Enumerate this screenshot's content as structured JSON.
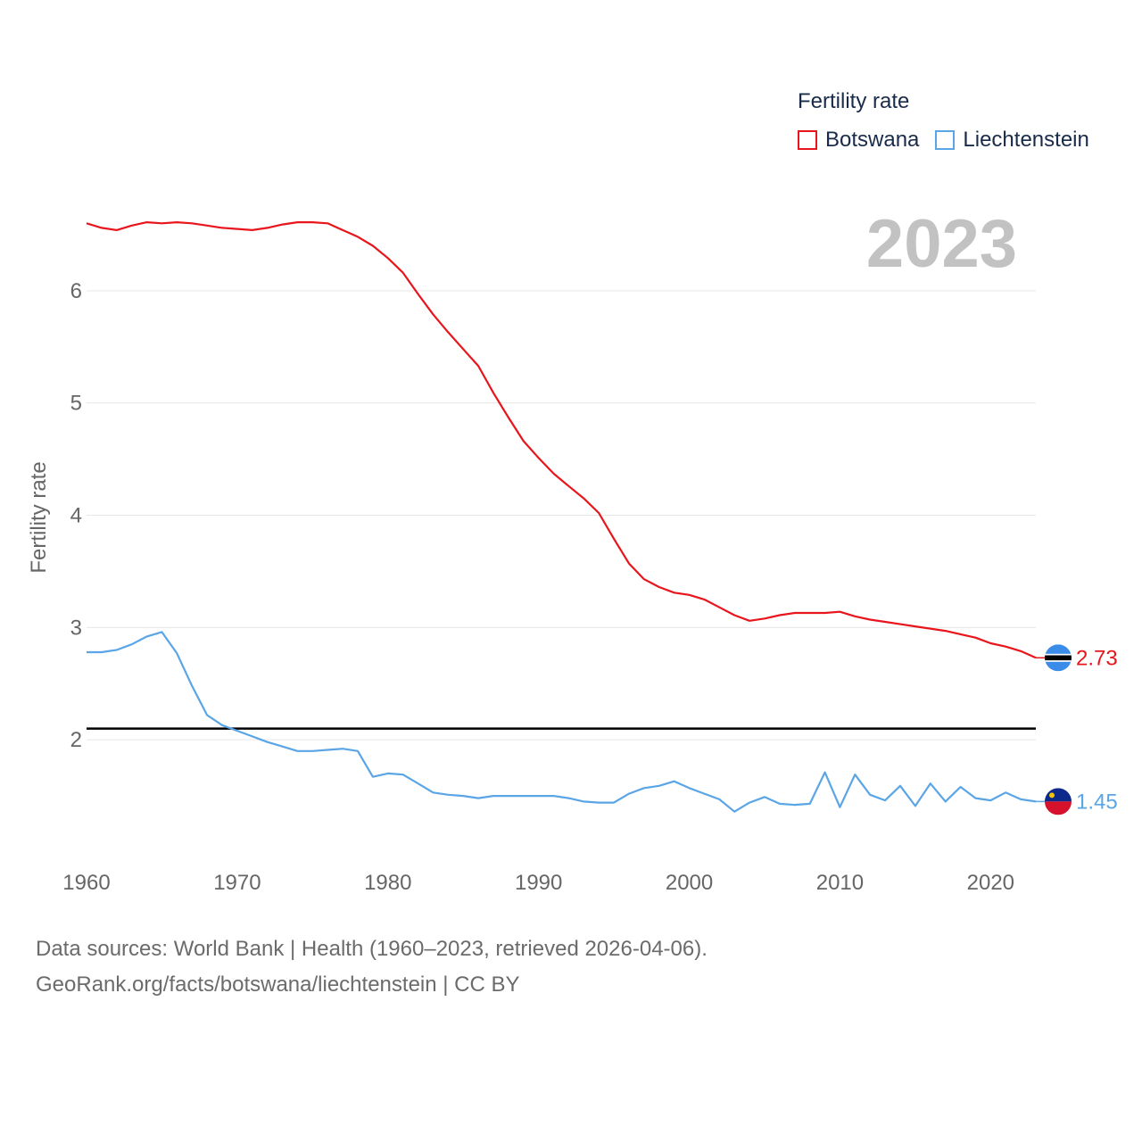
{
  "chart_data": {
    "type": "line",
    "big_year": "2023",
    "ylabel": "Fertility rate",
    "xlabel": "",
    "xlim": [
      1960,
      2023
    ],
    "ylim": [
      1.0,
      7.0
    ],
    "x_ticks": [
      1960,
      1970,
      1980,
      1990,
      2000,
      2010,
      2020
    ],
    "y_ticks": [
      2,
      3,
      4,
      5,
      6
    ],
    "legend_title": "Fertility rate",
    "legend_position": "top-right",
    "reference_line": {
      "value": 2.1,
      "color": "#000000"
    },
    "series": [
      {
        "name": "Botswana",
        "color": "#e8161c",
        "end_label": "2.73",
        "flag": "botswana-flag-icon",
        "x": [
          1960,
          1961,
          1962,
          1963,
          1964,
          1965,
          1966,
          1967,
          1968,
          1969,
          1970,
          1971,
          1972,
          1973,
          1974,
          1975,
          1976,
          1977,
          1978,
          1979,
          1980,
          1981,
          1982,
          1983,
          1984,
          1985,
          1986,
          1987,
          1988,
          1989,
          1990,
          1991,
          1992,
          1993,
          1994,
          1995,
          1996,
          1997,
          1998,
          1999,
          2000,
          2001,
          2002,
          2003,
          2004,
          2005,
          2006,
          2007,
          2008,
          2009,
          2010,
          2011,
          2012,
          2013,
          2014,
          2015,
          2016,
          2017,
          2018,
          2019,
          2020,
          2021,
          2022,
          2023
        ],
        "values": [
          6.6,
          6.56,
          6.54,
          6.58,
          6.61,
          6.6,
          6.61,
          6.6,
          6.58,
          6.56,
          6.55,
          6.54,
          6.56,
          6.59,
          6.61,
          6.61,
          6.6,
          6.54,
          6.48,
          6.4,
          6.29,
          6.16,
          5.97,
          5.79,
          5.63,
          5.48,
          5.33,
          5.09,
          4.87,
          4.66,
          4.51,
          4.37,
          4.26,
          4.15,
          4.02,
          3.79,
          3.57,
          3.43,
          3.36,
          3.31,
          3.29,
          3.25,
          3.18,
          3.11,
          3.06,
          3.08,
          3.11,
          3.13,
          3.13,
          3.13,
          3.14,
          3.1,
          3.07,
          3.05,
          3.03,
          3.01,
          2.99,
          2.97,
          2.94,
          2.91,
          2.86,
          2.83,
          2.79,
          2.73
        ]
      },
      {
        "name": "Liechtenstein",
        "color": "#5aa5e6",
        "end_label": "1.45",
        "flag": "liechtenstein-flag-icon",
        "x": [
          1960,
          1961,
          1962,
          1963,
          1964,
          1965,
          1966,
          1967,
          1968,
          1969,
          1970,
          1971,
          1972,
          1973,
          1974,
          1975,
          1976,
          1977,
          1978,
          1979,
          1980,
          1981,
          1982,
          1983,
          1984,
          1985,
          1986,
          1987,
          1988,
          1989,
          1990,
          1991,
          1992,
          1993,
          1994,
          1995,
          1996,
          1997,
          1998,
          1999,
          2000,
          2001,
          2002,
          2003,
          2004,
          2005,
          2006,
          2007,
          2008,
          2009,
          2010,
          2011,
          2012,
          2013,
          2014,
          2015,
          2016,
          2017,
          2018,
          2019,
          2020,
          2021,
          2022,
          2023
        ],
        "values": [
          2.78,
          2.78,
          2.8,
          2.85,
          2.92,
          2.96,
          2.77,
          2.48,
          2.22,
          2.13,
          2.08,
          2.03,
          1.98,
          1.94,
          1.9,
          1.9,
          1.91,
          1.92,
          1.9,
          1.67,
          1.7,
          1.69,
          1.61,
          1.53,
          1.51,
          1.5,
          1.48,
          1.5,
          1.5,
          1.5,
          1.5,
          1.5,
          1.48,
          1.45,
          1.44,
          1.44,
          1.52,
          1.57,
          1.59,
          1.63,
          1.57,
          1.52,
          1.47,
          1.36,
          1.44,
          1.49,
          1.43,
          1.42,
          1.43,
          1.71,
          1.4,
          1.69,
          1.51,
          1.46,
          1.59,
          1.41,
          1.61,
          1.45,
          1.58,
          1.48,
          1.46,
          1.53,
          1.47,
          1.45
        ]
      }
    ]
  },
  "footer": {
    "line1": "Data sources: World Bank | Health (1960–2023, retrieved 2026-04-06).",
    "line2": "GeoRank.org/facts/botswana/liechtenstein | CC BY"
  }
}
